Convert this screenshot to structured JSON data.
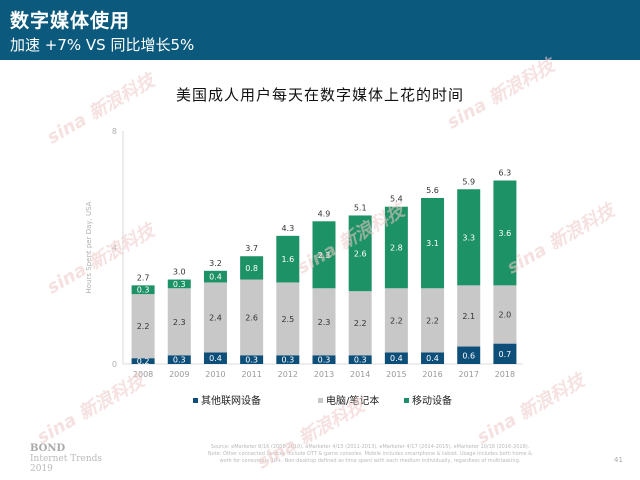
{
  "header": {
    "title": "数字媒体使用",
    "subtitle": "加速 +7% VS 同比增长5%"
  },
  "chart_data": {
    "type": "bar",
    "stacked": true,
    "title": "美国成人用户每天在数字媒体上花的时间",
    "xlabel": "",
    "ylabel": "Hours Spent per Day, USA",
    "ylim": [
      0,
      8
    ],
    "yticks": [
      0,
      4,
      8
    ],
    "categories": [
      "2008",
      "2009",
      "2010",
      "2011",
      "2012",
      "2013",
      "2014",
      "2015",
      "2016",
      "2017",
      "2018"
    ],
    "series": [
      {
        "name": "其他联网设备",
        "color": "#0e4f79",
        "values": [
          0.2,
          0.3,
          0.4,
          0.3,
          0.3,
          0.3,
          0.3,
          0.4,
          0.4,
          0.6,
          0.7
        ]
      },
      {
        "name": "电脑/笔记本",
        "color": "#c8c8c8",
        "values": [
          2.2,
          2.3,
          2.4,
          2.6,
          2.5,
          2.3,
          2.2,
          2.2,
          2.2,
          2.1,
          2.0
        ]
      },
      {
        "name": "移动设备",
        "color": "#1d9266",
        "values": [
          0.3,
          0.3,
          0.4,
          0.8,
          1.6,
          2.3,
          2.6,
          2.8,
          3.1,
          3.3,
          3.6
        ]
      }
    ],
    "totals": [
      2.7,
      3.0,
      3.2,
      3.7,
      4.3,
      4.9,
      5.1,
      5.4,
      5.6,
      5.9,
      6.3
    ],
    "grid": false,
    "legend_position": "bottom"
  },
  "footer": {
    "logo_title": "BOND",
    "logo_sub": "Internet Trends",
    "logo_year": "2019",
    "source_line1": "Source: eMarketer 8/16 (2008-2010), eMarketer 4/15 (2011-2013), eMarketer 4/17 (2014-2015), eMarketer 10/18 (2016-2018).",
    "source_line2": "Note: Other connected devices include OTT & game consoles. Mobile includes smartphone & tablet. Usage includes both home &",
    "source_line3": "work for consumers 18+. Non-desktop defined as time spent with each medium individually, regardless of multitasking.",
    "page_number": "41"
  },
  "watermark": "sina 新浪科技"
}
